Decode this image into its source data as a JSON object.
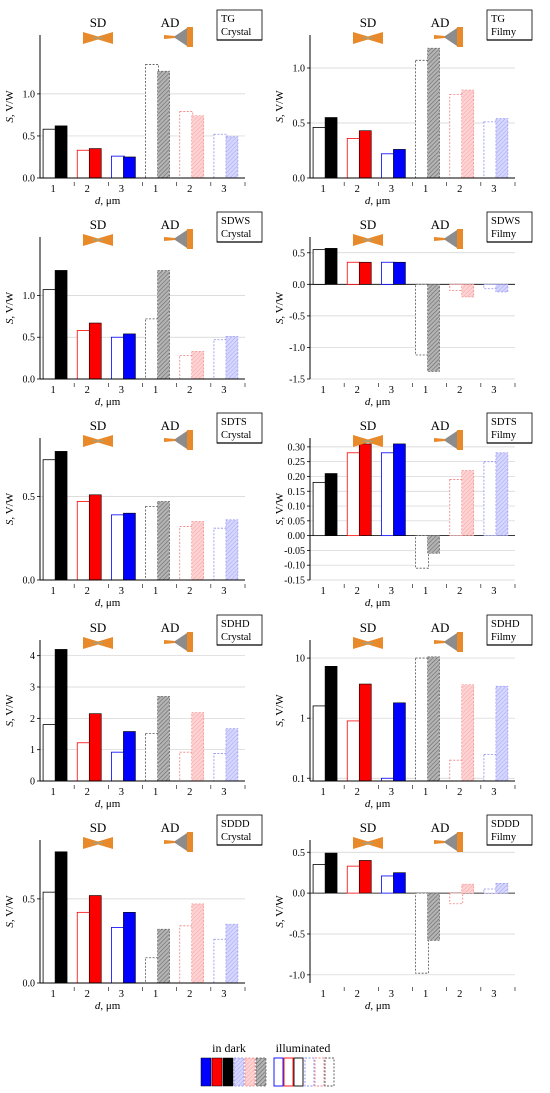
{
  "colors": {
    "d1": "#000000",
    "d2": "#ff0000",
    "d3": "#0000ff",
    "ad1": "#b0b0b0",
    "ad2": "#ffc8c8",
    "ad3": "#c8c8ff",
    "grid": "#d0d0d0",
    "orange": "#e8892a",
    "gray": "#8c8c8c"
  },
  "common": {
    "ylabel_s": "S",
    "ylabel_unit": ", V/W",
    "xlabel_d": "d",
    "xlabel_unit": ", μm",
    "sd_label": "SD",
    "ad_label": "AD",
    "groups": [
      "1",
      "2",
      "3",
      "1",
      "2",
      "3"
    ]
  },
  "legend": {
    "dark_label": "in dark",
    "illuminated_label": "illuminated"
  },
  "chart_data": [
    {
      "id": "tg-crystal",
      "type": "bar",
      "label1": "TG",
      "label2": "Crystal",
      "ylim": [
        0,
        1.7
      ],
      "yticks": [
        0.0,
        0.5,
        1.0
      ],
      "sd_dark": [
        0.62,
        0.35,
        0.25
      ],
      "sd_illum": [
        0.58,
        0.33,
        0.26
      ],
      "ad_dark": [
        1.27,
        0.74,
        0.49
      ],
      "ad_illum": [
        1.35,
        0.79,
        0.52
      ]
    },
    {
      "id": "tg-filmy",
      "type": "bar",
      "label1": "TG",
      "label2": "Filmy",
      "ylim": [
        0,
        1.3
      ],
      "yticks": [
        0.0,
        0.5,
        1.0
      ],
      "sd_dark": [
        0.55,
        0.43,
        0.26
      ],
      "sd_illum": [
        0.46,
        0.36,
        0.22
      ],
      "ad_dark": [
        1.18,
        0.8,
        0.54
      ],
      "ad_illum": [
        1.07,
        0.76,
        0.51
      ]
    },
    {
      "id": "sdws-crystal",
      "type": "bar",
      "label1": "SDWS",
      "label2": "Crystal",
      "ylim": [
        0,
        1.7
      ],
      "yticks": [
        0.0,
        0.5,
        1.0
      ],
      "sd_dark": [
        1.3,
        0.67,
        0.54
      ],
      "sd_illum": [
        1.07,
        0.58,
        0.5
      ],
      "ad_dark": [
        1.3,
        0.33,
        0.51
      ],
      "ad_illum": [
        0.72,
        0.28,
        0.47
      ]
    },
    {
      "id": "sdws-filmy",
      "type": "bar",
      "label1": "SDWS",
      "label2": "Filmy",
      "ylim": [
        -1.5,
        0.75
      ],
      "yticks": [
        -1.5,
        -1.0,
        -0.5,
        0.0,
        0.5
      ],
      "sd_dark": [
        0.57,
        0.35,
        0.35
      ],
      "sd_illum": [
        0.55,
        0.35,
        0.35
      ],
      "ad_dark": [
        -1.38,
        -0.2,
        -0.12
      ],
      "ad_illum": [
        -1.12,
        -0.1,
        -0.07
      ]
    },
    {
      "id": "sdts-crystal",
      "type": "bar",
      "label1": "SDTS",
      "label2": "Crystal",
      "ylim": [
        0,
        0.85
      ],
      "yticks": [
        0.0,
        0.5
      ],
      "sd_dark": [
        0.77,
        0.51,
        0.4
      ],
      "sd_illum": [
        0.72,
        0.47,
        0.39
      ],
      "ad_dark": [
        0.47,
        0.35,
        0.36
      ],
      "ad_illum": [
        0.44,
        0.32,
        0.31
      ]
    },
    {
      "id": "sdts-filmy",
      "type": "bar",
      "label1": "SDTS",
      "label2": "Filmy",
      "ylim": [
        -0.15,
        0.33
      ],
      "yticks": [
        -0.15,
        -0.1,
        -0.05,
        0.0,
        0.05,
        0.1,
        0.15,
        0.2,
        0.25,
        0.3
      ],
      "sd_dark": [
        0.21,
        0.31,
        0.31
      ],
      "sd_illum": [
        0.18,
        0.28,
        0.28
      ],
      "ad_dark": [
        -0.06,
        0.22,
        0.28
      ],
      "ad_illum": [
        -0.11,
        0.19,
        0.25
      ]
    },
    {
      "id": "sdhd-crystal",
      "type": "bar",
      "label1": "SDHD",
      "label2": "Crystal",
      "ylim": [
        0,
        4.5
      ],
      "yticks": [
        0,
        1,
        2,
        3,
        4
      ],
      "sd_dark": [
        4.2,
        2.15,
        1.58
      ],
      "sd_illum": [
        1.8,
        1.22,
        0.92
      ],
      "ad_dark": [
        2.7,
        2.18,
        1.67
      ],
      "ad_illum": [
        1.52,
        0.92,
        0.88
      ]
    },
    {
      "id": "sdhd-filmy",
      "type": "bar",
      "label1": "SDHD",
      "label2": "Filmy",
      "log": true,
      "ylim": [
        0.09,
        20
      ],
      "yticks": [
        0.1,
        1,
        10
      ],
      "sd_dark": [
        7.3,
        3.7,
        1.8
      ],
      "sd_illum": [
        1.6,
        0.9,
        0.1
      ],
      "ad_dark": [
        10.5,
        3.6,
        3.4
      ],
      "ad_illum": [
        10.0,
        0.2,
        0.25
      ]
    },
    {
      "id": "sddd-crystal",
      "type": "bar",
      "label1": "SDDD",
      "label2": "Crystal",
      "ylim": [
        0,
        0.85
      ],
      "yticks": [
        0.0,
        0.5
      ],
      "sd_dark": [
        0.78,
        0.52,
        0.42
      ],
      "sd_illum": [
        0.54,
        0.42,
        0.33
      ],
      "ad_dark": [
        0.32,
        0.47,
        0.35
      ],
      "ad_illum": [
        0.15,
        0.34,
        0.26
      ]
    },
    {
      "id": "sddd-filmy",
      "type": "bar",
      "label1": "SDDD",
      "label2": "Filmy",
      "ylim": [
        -1.1,
        0.65
      ],
      "yticks": [
        -1.0,
        -0.5,
        0.0,
        0.5
      ],
      "sd_dark": [
        0.49,
        0.4,
        0.25
      ],
      "sd_illum": [
        0.35,
        0.33,
        0.21
      ],
      "ad_dark": [
        -0.58,
        0.11,
        0.12
      ],
      "ad_illum": [
        -0.98,
        -0.13,
        0.05
      ]
    }
  ]
}
